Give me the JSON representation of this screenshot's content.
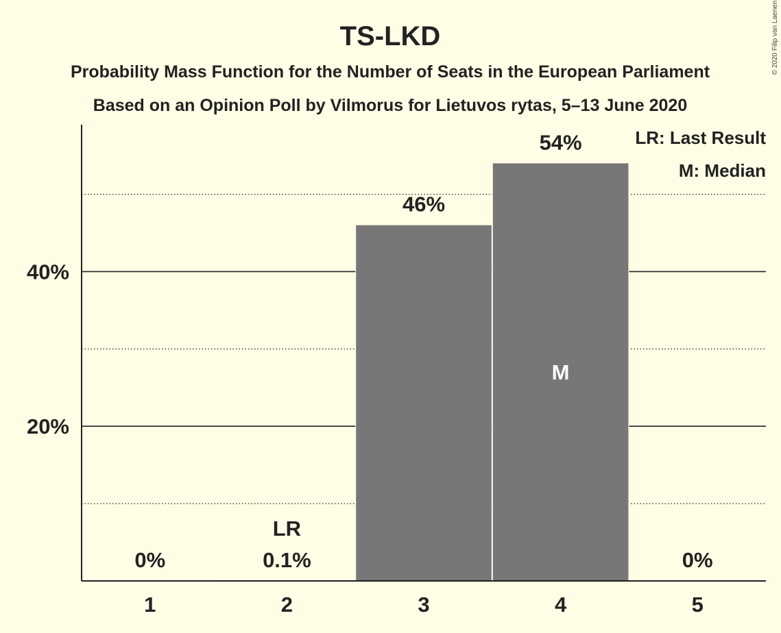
{
  "copyright": "© 2020 Filip van Laenen",
  "chart_data": {
    "type": "bar",
    "title": "TS-LKD",
    "subtitle_lines": [
      "Probability Mass Function for the Number of Seats in the European Parliament",
      "Based on an Opinion Poll by Vilmorus for Lietuvos rytas, 5–13 June 2020"
    ],
    "xlabel": "",
    "ylabel": "",
    "categories": [
      "1",
      "2",
      "3",
      "4",
      "5"
    ],
    "values": [
      0,
      0.1,
      46,
      54,
      0
    ],
    "value_labels": [
      "0%",
      "0.1%",
      "46%",
      "54%",
      "0%"
    ],
    "ylim": [
      0,
      59
    ],
    "yticks_major": [
      20,
      40
    ],
    "ytick_labels": [
      "20%",
      "40%"
    ],
    "yticks_minor": [
      10,
      30,
      50
    ],
    "last_result": {
      "category": "2",
      "label": "LR"
    },
    "median": {
      "category": "4",
      "label": "M"
    },
    "legend": [
      "LR: Last Result",
      "M: Median"
    ],
    "legend_position": "top-right",
    "grid": true,
    "bar_color": "#777777",
    "background": "#fffde5",
    "text_color": "#222222"
  }
}
